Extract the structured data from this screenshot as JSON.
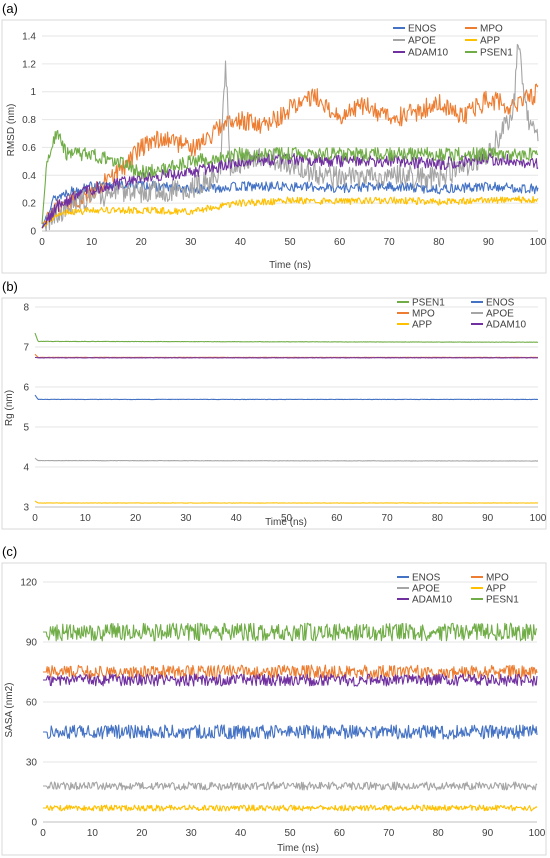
{
  "chart_data": [
    {
      "panel": "(a)",
      "type": "line",
      "xlabel": "Time (ns)",
      "ylabel": "RMSD (nm)",
      "xlim": [
        0,
        100
      ],
      "ylim": [
        0,
        1.4
      ],
      "xticks": [
        0,
        10,
        20,
        30,
        40,
        50,
        60,
        70,
        80,
        90,
        100
      ],
      "yticks": [
        0,
        0.2,
        0.4,
        0.6,
        0.8,
        1,
        1.2,
        1.4
      ],
      "ytick_labels": [
        "0",
        "0.2",
        "0.4",
        "0.6",
        "0.8",
        "1",
        "1.2",
        "1.4"
      ],
      "grid": "horizontal",
      "legend": "top-right, 3 rows x 2 columns",
      "series": [
        {
          "name": "ENOS",
          "color": "#4472C4",
          "noise": 0.035,
          "values": [
            [
              0,
              0.02
            ],
            [
              2,
              0.22
            ],
            [
              5,
              0.28
            ],
            [
              10,
              0.32
            ],
            [
              20,
              0.33
            ],
            [
              30,
              0.3
            ],
            [
              40,
              0.32
            ],
            [
              50,
              0.32
            ],
            [
              60,
              0.31
            ],
            [
              70,
              0.32
            ],
            [
              80,
              0.3
            ],
            [
              90,
              0.32
            ],
            [
              100,
              0.3
            ]
          ]
        },
        {
          "name": "MPO",
          "color": "#ED7D31",
          "noise": 0.07,
          "values": [
            [
              0,
              0.05
            ],
            [
              3,
              0.15
            ],
            [
              10,
              0.28
            ],
            [
              15,
              0.4
            ],
            [
              20,
              0.6
            ],
            [
              25,
              0.68
            ],
            [
              30,
              0.58
            ],
            [
              35,
              0.72
            ],
            [
              40,
              0.8
            ],
            [
              45,
              0.75
            ],
            [
              50,
              0.88
            ],
            [
              55,
              0.98
            ],
            [
              60,
              0.82
            ],
            [
              65,
              0.9
            ],
            [
              70,
              0.8
            ],
            [
              75,
              0.85
            ],
            [
              80,
              0.92
            ],
            [
              85,
              0.82
            ],
            [
              90,
              0.95
            ],
            [
              95,
              0.88
            ],
            [
              100,
              1.0
            ]
          ]
        },
        {
          "name": "APOE",
          "color": "#A5A5A5",
          "noise": 0.08,
          "values": [
            [
              0,
              0.02
            ],
            [
              5,
              0.18
            ],
            [
              10,
              0.25
            ],
            [
              20,
              0.28
            ],
            [
              30,
              0.3
            ],
            [
              36,
              0.42
            ],
            [
              37,
              1.25
            ],
            [
              38,
              0.45
            ],
            [
              45,
              0.55
            ],
            [
              50,
              0.45
            ],
            [
              60,
              0.38
            ],
            [
              70,
              0.4
            ],
            [
              80,
              0.38
            ],
            [
              90,
              0.55
            ],
            [
              95,
              0.85
            ],
            [
              96,
              1.35
            ],
            [
              98,
              0.8
            ],
            [
              100,
              0.65
            ]
          ]
        },
        {
          "name": "APP",
          "color": "#FFC000",
          "noise": 0.025,
          "values": [
            [
              0,
              0.02
            ],
            [
              3,
              0.12
            ],
            [
              10,
              0.15
            ],
            [
              20,
              0.15
            ],
            [
              30,
              0.14
            ],
            [
              40,
              0.2
            ],
            [
              50,
              0.22
            ],
            [
              60,
              0.21
            ],
            [
              70,
              0.22
            ],
            [
              80,
              0.21
            ],
            [
              90,
              0.22
            ],
            [
              100,
              0.23
            ]
          ]
        },
        {
          "name": "ADAM10",
          "color": "#7030A0",
          "noise": 0.045,
          "values": [
            [
              0,
              0.02
            ],
            [
              3,
              0.18
            ],
            [
              10,
              0.3
            ],
            [
              20,
              0.38
            ],
            [
              30,
              0.42
            ],
            [
              40,
              0.5
            ],
            [
              50,
              0.52
            ],
            [
              60,
              0.5
            ],
            [
              70,
              0.5
            ],
            [
              80,
              0.48
            ],
            [
              90,
              0.52
            ],
            [
              100,
              0.48
            ]
          ]
        },
        {
          "name": "PSEN1",
          "color": "#70AD47",
          "noise": 0.05,
          "values": [
            [
              0,
              0.05
            ],
            [
              1,
              0.5
            ],
            [
              3,
              0.7
            ],
            [
              5,
              0.55
            ],
            [
              10,
              0.55
            ],
            [
              15,
              0.5
            ],
            [
              20,
              0.42
            ],
            [
              25,
              0.45
            ],
            [
              30,
              0.5
            ],
            [
              40,
              0.55
            ],
            [
              50,
              0.55
            ],
            [
              60,
              0.55
            ],
            [
              70,
              0.55
            ],
            [
              80,
              0.55
            ],
            [
              90,
              0.55
            ],
            [
              100,
              0.55
            ]
          ]
        }
      ]
    },
    {
      "panel": "(b)",
      "type": "line",
      "xlabel": "Time (ns)",
      "ylabel": "Rg (nm)",
      "xlim": [
        0,
        100
      ],
      "ylim": [
        3,
        8
      ],
      "xticks": [
        0,
        10,
        20,
        30,
        40,
        50,
        60,
        70,
        80,
        90,
        100
      ],
      "yticks": [
        3,
        4,
        5,
        6,
        7,
        8
      ],
      "ytick_labels": [
        "3",
        "4",
        "5",
        "6",
        "7",
        "8"
      ],
      "grid": "horizontal",
      "legend": "top-right, 3 rows x 2 columns",
      "series": [
        {
          "name": "PSEN1",
          "color": "#70AD47",
          "noise": 0.004,
          "values": [
            [
              0,
              7.35
            ],
            [
              0.6,
              7.14
            ],
            [
              100,
              7.12
            ]
          ]
        },
        {
          "name": "ENOS",
          "color": "#4472C4",
          "noise": 0.004,
          "values": [
            [
              0,
              5.8
            ],
            [
              0.6,
              5.69
            ],
            [
              100,
              5.69
            ]
          ]
        },
        {
          "name": "MPO",
          "color": "#ED7D31",
          "noise": 0.004,
          "values": [
            [
              0,
              6.82
            ],
            [
              0.6,
              6.74
            ],
            [
              100,
              6.74
            ]
          ]
        },
        {
          "name": "APOE",
          "color": "#A5A5A5",
          "noise": 0.004,
          "values": [
            [
              0,
              4.22
            ],
            [
              0.6,
              4.16
            ],
            [
              100,
              4.15
            ]
          ]
        },
        {
          "name": "APP",
          "color": "#FFC000",
          "noise": 0.004,
          "values": [
            [
              0,
              3.15
            ],
            [
              0.6,
              3.1
            ],
            [
              100,
              3.1
            ]
          ]
        },
        {
          "name": "ADAM10",
          "color": "#7030A0",
          "noise": 0.004,
          "values": [
            [
              0,
              6.74
            ],
            [
              0.6,
              6.73
            ],
            [
              100,
              6.73
            ]
          ]
        }
      ]
    },
    {
      "panel": "(c)",
      "type": "line",
      "xlabel": "Time (ns)",
      "ylabel": "SASA (nm2)",
      "xlim": [
        0,
        100
      ],
      "ylim": [
        0,
        120
      ],
      "xticks": [
        0,
        10,
        20,
        30,
        40,
        50,
        60,
        70,
        80,
        90,
        100
      ],
      "yticks": [
        0,
        30,
        60,
        90,
        120
      ],
      "ytick_labels": [
        "0",
        "30",
        "60",
        "90",
        "120"
      ],
      "grid": "horizontal",
      "legend": "top-right, 3 rows x 2 columns",
      "series": [
        {
          "name": "ENOS",
          "color": "#4472C4",
          "noise": 3.5,
          "values": [
            [
              0,
              45
            ],
            [
              100,
              45
            ]
          ]
        },
        {
          "name": "MPO",
          "color": "#ED7D31",
          "noise": 3.5,
          "values": [
            [
              0,
              75
            ],
            [
              100,
              75
            ]
          ]
        },
        {
          "name": "APOE",
          "color": "#A5A5A5",
          "noise": 2.0,
          "values": [
            [
              0,
              18
            ],
            [
              100,
              18
            ]
          ]
        },
        {
          "name": "APP",
          "color": "#FFC000",
          "noise": 1.5,
          "values": [
            [
              0,
              7
            ],
            [
              100,
              7
            ]
          ]
        },
        {
          "name": "ADAM10",
          "color": "#7030A0",
          "noise": 3.0,
          "values": [
            [
              0,
              71
            ],
            [
              100,
              71
            ]
          ]
        },
        {
          "name": "PESN1",
          "color": "#70AD47",
          "noise": 4.5,
          "values": [
            [
              0,
              95
            ],
            [
              100,
              95
            ]
          ]
        }
      ]
    }
  ]
}
